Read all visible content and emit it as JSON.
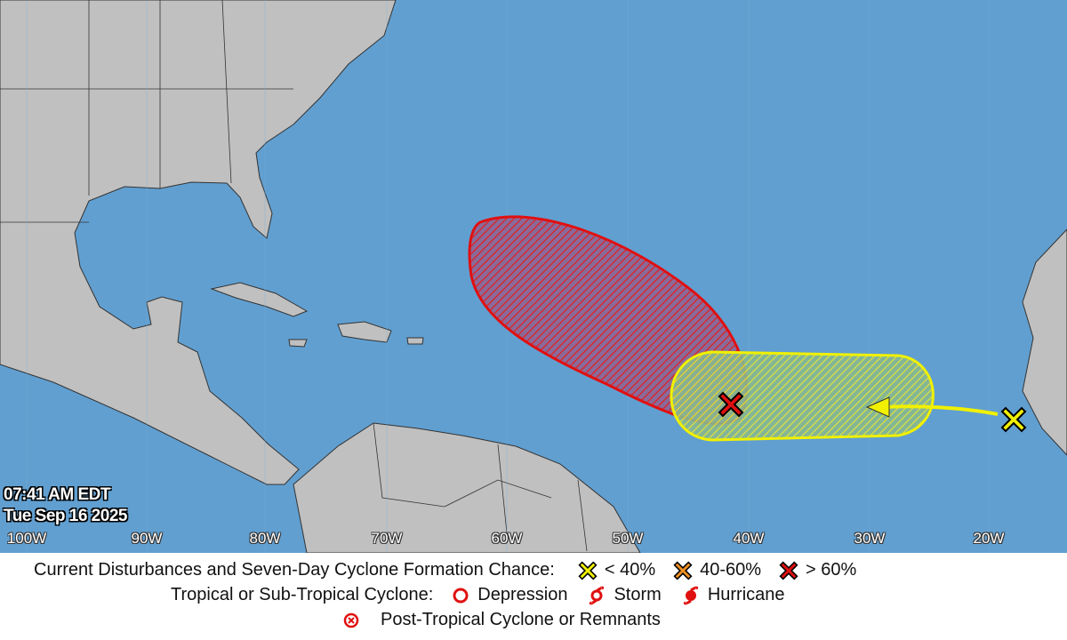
{
  "timestamp": {
    "time": "07:41 AM EDT",
    "date": "Tue Sep 16 2025"
  },
  "longitude_labels": [
    "100W",
    "90W",
    "80W",
    "70W",
    "60W",
    "50W",
    "40W",
    "30W",
    "20W"
  ],
  "colors": {
    "ocean": "#619fd0",
    "land": "#c0c0c0",
    "high_chance": "#e01010",
    "low_chance": "#f0f000",
    "medium_chance": "#f09020"
  },
  "disturbances": [
    {
      "chance_category": "> 60%",
      "color": "#e01010",
      "icon": "x-marker-red"
    },
    {
      "chance_category": "< 40%",
      "color": "#f0f000",
      "icon": "x-marker-yellow",
      "motion": "westward"
    }
  ],
  "legend": {
    "row1_label": "Current Disturbances and Seven-Day Cyclone Formation Chance:",
    "low": "< 40%",
    "medium": "40-60%",
    "high": "> 60%",
    "row2_label": "Tropical or Sub-Tropical Cyclone:",
    "depression": "Depression",
    "storm": "Storm",
    "hurricane": "Hurricane",
    "post_tropical": "Post-Tropical Cyclone or Remnants"
  }
}
